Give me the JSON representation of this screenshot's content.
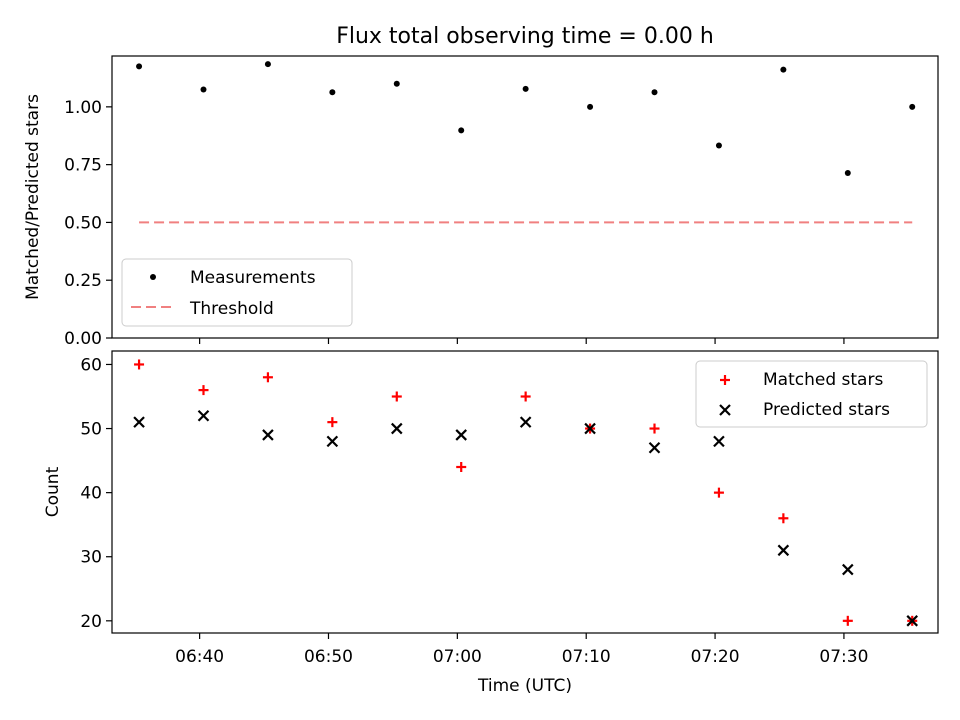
{
  "chart_data": [
    {
      "type": "scatter",
      "title": "Flux total observing time = 0.00 h",
      "xlabel": "",
      "ylabel": "Matched/Predicted stars",
      "ylim": [
        0,
        1.22
      ],
      "yticks": [
        "0.00",
        "0.25",
        "0.50",
        "0.75",
        "1.00"
      ],
      "ytick_values": [
        0,
        0.25,
        0.5,
        0.75,
        1.0
      ],
      "x_minutes": [
        35.3,
        40.3,
        45.3,
        50.3,
        55.3,
        60.3,
        65.3,
        70.3,
        75.3,
        80.3,
        85.3,
        90.3,
        95.3
      ],
      "series": [
        {
          "name": "Measurements",
          "marker": "dot",
          "color": "#000000",
          "values": [
            1.175,
            1.075,
            1.185,
            1.063,
            1.1,
            0.898,
            1.078,
            1.0,
            1.063,
            0.833,
            1.161,
            0.714,
            1.0
          ]
        },
        {
          "name": "Threshold",
          "marker": "dashed-line",
          "color": "#f08080",
          "values": [
            0.5,
            0.5
          ]
        }
      ],
      "legend": {
        "position": "lower-left",
        "labels": [
          "Measurements",
          "Threshold"
        ]
      }
    },
    {
      "type": "scatter",
      "xlabel": "Time (UTC)",
      "ylabel": "Count",
      "ylim": [
        18.1,
        62.1
      ],
      "yticks": [
        "20",
        "30",
        "40",
        "50",
        "60"
      ],
      "ytick_values": [
        20,
        30,
        40,
        50,
        60
      ],
      "xlim_minutes": [
        33.2,
        97.3
      ],
      "xticks": [
        "06:40",
        "06:50",
        "07:00",
        "07:10",
        "07:20",
        "07:30"
      ],
      "xtick_minutes": [
        40,
        50,
        60,
        70,
        80,
        90
      ],
      "x_minutes": [
        35.3,
        40.3,
        45.3,
        50.3,
        55.3,
        60.3,
        65.3,
        70.3,
        75.3,
        80.3,
        85.3,
        90.3,
        95.3
      ],
      "series": [
        {
          "name": "Matched stars",
          "marker": "plus",
          "color": "#ff0000",
          "values": [
            60,
            56,
            58,
            51,
            55,
            44,
            55,
            50,
            50,
            40,
            36,
            20,
            20
          ]
        },
        {
          "name": "Predicted stars",
          "marker": "x",
          "color": "#000000",
          "values": [
            51,
            52,
            49,
            48,
            50,
            49,
            51,
            50,
            47,
            48,
            31,
            28,
            20
          ]
        }
      ],
      "legend": {
        "position": "top-right",
        "labels": [
          "Matched stars",
          "Predicted stars"
        ]
      }
    }
  ]
}
